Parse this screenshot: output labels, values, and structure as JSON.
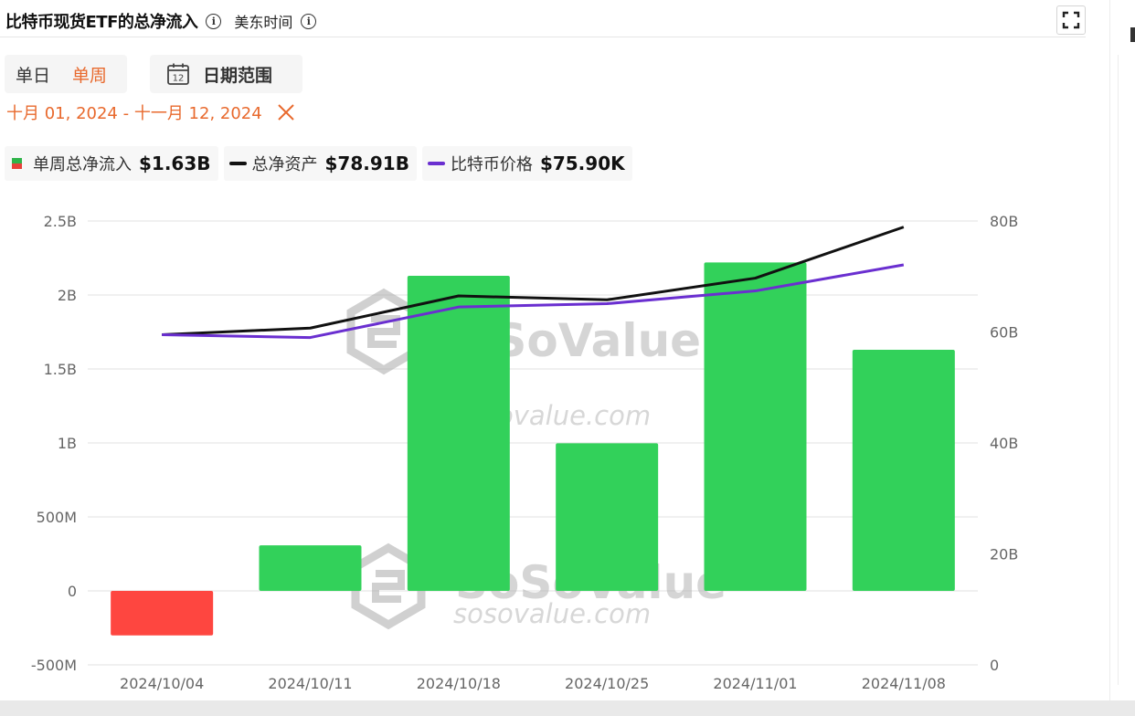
{
  "header": {
    "title": "比特币现货ETF的总净流入",
    "timezone_label": "美东时间",
    "info_icon": "info-icon",
    "fullscreen_icon": "fullscreen-icon"
  },
  "controls": {
    "mode_tabs": [
      {
        "label": "单日",
        "active": false
      },
      {
        "label": "单周",
        "active": true
      }
    ],
    "date_range_button": "日期范围",
    "calendar_icon_day": "12",
    "date_range_text": "十月 01, 2024 - 十一月 12, 2024",
    "clear_icon": "close-icon",
    "accent_color": "#e8692d"
  },
  "legend": [
    {
      "label": "单周总净流入",
      "value": "$1.63B"
    },
    {
      "label": "总净资产",
      "value": "$78.91B",
      "color": "#111111"
    },
    {
      "label": "比特币价格",
      "value": "$75.90K",
      "color": "#6a2fd0"
    }
  ],
  "watermark": {
    "brand": "SoSoValue",
    "url": "sosovalue.com"
  },
  "chart_data": {
    "type": "bar",
    "categories": [
      "2024/10/04",
      "2024/10/11",
      "2024/10/18",
      "2024/10/25",
      "2024/11/01",
      "2024/11/08"
    ],
    "series": [
      {
        "name": "单周总净流入",
        "type": "bar",
        "axis": "left",
        "values": [
          -301000000,
          308000000,
          2130000000,
          997500000,
          2220000000,
          1630000000
        ]
      },
      {
        "name": "总净资产",
        "type": "line",
        "axis": "right",
        "color": "#111111",
        "values": [
          59500000000,
          60700000000,
          66500000000,
          65800000000,
          69700000000,
          78910000000
        ]
      },
      {
        "name": "比特币价格",
        "type": "line",
        "axis": "right",
        "color": "#6a2fd0",
        "values": [
          59500000000,
          59000000000,
          64500000000,
          65100000000,
          67400000000,
          72100000000
        ]
      }
    ],
    "y_left": {
      "min": -500000000,
      "max": 2500000000,
      "ticks": [
        2500000000,
        2000000000,
        1500000000,
        1000000000,
        500000000,
        0,
        -500000000
      ],
      "tick_labels": [
        "2.5B",
        "2B",
        "1.5B",
        "1B",
        "500M",
        "0",
        "-500M"
      ]
    },
    "y_right": {
      "min": 0,
      "max": 80000000000,
      "ticks": [
        80000000000,
        60000000000,
        40000000000,
        20000000000,
        0
      ],
      "tick_labels": [
        "80B",
        "60B",
        "40B",
        "20B",
        "0"
      ]
    },
    "colors": {
      "positive": "#32d15a",
      "negative": "#fe4640",
      "grid": "#e7e7e7"
    },
    "grid": true
  }
}
